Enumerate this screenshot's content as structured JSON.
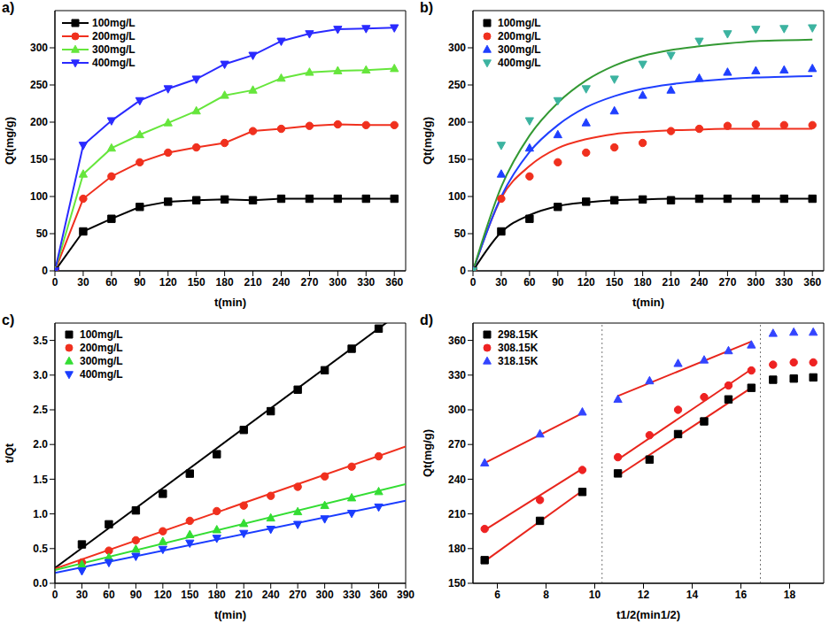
{
  "chart_data": [
    {
      "type": "line",
      "title": "a)",
      "x_label": "t(min)",
      "y_label": "Qt(mg/g)",
      "legend": "upper left",
      "x": [
        0,
        30,
        60,
        90,
        120,
        150,
        180,
        210,
        240,
        270,
        300,
        330,
        360
      ],
      "xlim": [
        0,
        372
      ],
      "xticks": [
        0,
        30,
        60,
        90,
        120,
        150,
        180,
        210,
        240,
        270,
        300,
        330,
        360
      ],
      "ylim": [
        0,
        350
      ],
      "yticks": [
        0,
        50,
        100,
        150,
        200,
        250,
        300
      ],
      "series": [
        {
          "name": "100mg/L",
          "color": "#000000",
          "marker": "square",
          "values": [
            0,
            53,
            70,
            86,
            93,
            95,
            96,
            95,
            97,
            97,
            97,
            97,
            97
          ]
        },
        {
          "name": "200mg/L",
          "color": "#f0301e",
          "marker": "circle",
          "values": [
            0,
            97,
            127,
            146,
            159,
            166,
            172,
            188,
            191,
            195,
            197,
            196,
            196
          ]
        },
        {
          "name": "300mg/L",
          "color": "#66e63c",
          "marker": "triangle-up",
          "values": [
            0,
            130,
            165,
            183,
            199,
            215,
            236,
            243,
            259,
            267,
            269,
            270,
            272
          ]
        },
        {
          "name": "400mg/L",
          "color": "#2a2aff",
          "marker": "triangle-down",
          "values": [
            0,
            169,
            202,
            229,
            245,
            258,
            278,
            290,
            309,
            319,
            325,
            326,
            327
          ]
        }
      ]
    },
    {
      "type": "scatter",
      "title": "b)",
      "x_label": "t(min)",
      "y_label": "Qt(mg/g)",
      "legend": "upper left",
      "x": [
        0,
        30,
        60,
        90,
        120,
        150,
        180,
        210,
        240,
        270,
        300,
        330,
        360
      ],
      "xlim": [
        0,
        372
      ],
      "xticks": [
        0,
        30,
        60,
        90,
        120,
        150,
        180,
        210,
        240,
        270,
        300,
        330,
        360
      ],
      "ylim": [
        0,
        350
      ],
      "yticks": [
        0,
        50,
        100,
        150,
        200,
        250,
        300
      ],
      "series": [
        {
          "name": "100mg/L",
          "color": "#000000",
          "marker": "square",
          "values": [
            0,
            53,
            70,
            86,
            93,
            95,
            96,
            95,
            97,
            97,
            97,
            97,
            97
          ],
          "fit": [
            {
              "color": "#000000",
              "x": [
                0,
                30,
                60,
                90,
                120,
                150,
                180,
                210,
                240,
                270,
                300,
                330,
                360
              ],
              "values": [
                0,
                52,
                75,
                87,
                92,
                95,
                96,
                97,
                97,
                97,
                97,
                97,
                97
              ]
            }
          ]
        },
        {
          "name": "200mg/L",
          "color": "#f0301e",
          "marker": "circle",
          "values": [
            0,
            97,
            127,
            146,
            159,
            166,
            172,
            188,
            191,
            195,
            197,
            196,
            196
          ],
          "fit": [
            {
              "color": "#f0301e",
              "x": [
                0,
                30,
                60,
                90,
                120,
                150,
                180,
                210,
                240,
                270,
                300,
                330,
                360
              ],
              "values": [
                0,
                98,
                141,
                165,
                177,
                184,
                187,
                189,
                190,
                191,
                191,
                191,
                191
              ]
            }
          ]
        },
        {
          "name": "300mg/L",
          "color": "#1f3fff",
          "marker": "triangle-up",
          "values": [
            0,
            130,
            165,
            183,
            199,
            215,
            236,
            243,
            259,
            267,
            269,
            270,
            272
          ],
          "fit": [
            {
              "color": "#1f3fff",
              "x": [
                0,
                30,
                60,
                90,
                120,
                150,
                180,
                210,
                240,
                270,
                300,
                330,
                360
              ],
              "values": [
                0,
                100,
                160,
                196,
                220,
                235,
                245,
                251,
                255,
                258,
                260,
                261,
                262
              ]
            }
          ]
        },
        {
          "name": "400mg/L",
          "color": "#3cb3a0",
          "marker": "triangle-down",
          "values": [
            0,
            169,
            202,
            229,
            245,
            258,
            278,
            290,
            309,
            319,
            325,
            326,
            327
          ],
          "fit": [
            {
              "color": "#339933",
              "x": [
                0,
                30,
                60,
                90,
                120,
                150,
                180,
                210,
                240,
                270,
                300,
                330,
                360
              ],
              "values": [
                0,
                113,
                182,
                226,
                256,
                276,
                289,
                297,
                302,
                306,
                309,
                310,
                311
              ]
            }
          ]
        }
      ]
    },
    {
      "type": "scatter",
      "title": "c)",
      "x_label": "t(min)",
      "y_label": "t/Qt",
      "legend": "upper left",
      "x": [
        30,
        60,
        90,
        120,
        150,
        180,
        210,
        240,
        270,
        300,
        330,
        360
      ],
      "xlim": [
        0,
        390
      ],
      "xticks": [
        0,
        30,
        60,
        90,
        120,
        150,
        180,
        210,
        240,
        270,
        300,
        330,
        360,
        390
      ],
      "ylim": [
        0,
        3.75
      ],
      "yticks": [
        {
          "value": 0,
          "label": "0.0"
        },
        0.5,
        {
          "value": 1,
          "label": "1.0"
        },
        1.5,
        {
          "value": 2,
          "label": "2.0"
        },
        2.5,
        {
          "value": 3,
          "label": "3.0"
        },
        3.5
      ],
      "series": [
        {
          "name": "100mg/L",
          "color": "#000000",
          "marker": "square",
          "values": [
            0.56,
            0.85,
            1.05,
            1.29,
            1.58,
            1.86,
            2.21,
            2.48,
            2.79,
            3.07,
            3.38,
            3.67
          ],
          "fit": [
            {
              "color": "#000000",
              "x": [
                0,
                390
              ],
              "values": [
                0.22,
                3.96
              ]
            }
          ]
        },
        {
          "name": "200mg/L",
          "color": "#f0301e",
          "marker": "circle",
          "values": [
            0.3,
            0.47,
            0.62,
            0.75,
            0.9,
            1.04,
            1.12,
            1.26,
            1.39,
            1.54,
            1.68,
            1.83
          ],
          "fit": [
            {
              "color": "#f0301e",
              "x": [
                0,
                390
              ],
              "values": [
                0.21,
                1.97
              ]
            }
          ]
        },
        {
          "name": "300mg/L",
          "color": "#33dd33",
          "marker": "triangle-up",
          "values": [
            0.27,
            0.37,
            0.49,
            0.6,
            0.7,
            0.77,
            0.86,
            0.94,
            1.03,
            1.12,
            1.23,
            1.32
          ],
          "fit": [
            {
              "color": "#33dd33",
              "x": [
                0,
                390
              ],
              "values": [
                0.19,
                1.43
              ]
            }
          ]
        },
        {
          "name": "400mg/L",
          "color": "#1a3cff",
          "marker": "triangle-down",
          "values": [
            0.18,
            0.3,
            0.39,
            0.49,
            0.58,
            0.65,
            0.72,
            0.78,
            0.85,
            0.93,
            1.01,
            1.1
          ],
          "fit": [
            {
              "color": "#1a3cff",
              "x": [
                0,
                390
              ],
              "values": [
                0.15,
                1.19
              ]
            }
          ]
        }
      ]
    },
    {
      "type": "scatter",
      "title": "d)",
      "x_label": "t1/2(min1/2)",
      "y_label": "Qt(mg/g)",
      "legend": "upper left",
      "x": [
        5.48,
        7.75,
        9.49,
        10.95,
        12.25,
        13.42,
        14.49,
        15.49,
        16.43,
        17.32,
        18.17,
        18.97
      ],
      "xlim": [
        5,
        19.4
      ],
      "xticks": [
        6,
        8,
        10,
        12,
        14,
        16,
        18
      ],
      "ylim": [
        150,
        375
      ],
      "yticks": [
        150,
        180,
        210,
        240,
        270,
        300,
        330,
        360
      ],
      "vlines": [
        10.3,
        16.8
      ],
      "series": [
        {
          "name": "298.15K",
          "color": "#000000",
          "marker": "square",
          "values": [
            170,
            204,
            229,
            245,
            257,
            279,
            290,
            309,
            319,
            326,
            327,
            328
          ],
          "fit": [
            {
              "color": "#e8251c",
              "x": [
                5.48,
                9.49
              ],
              "values": [
                169,
                230
              ]
            },
            {
              "color": "#e8251c",
              "x": [
                10.95,
                16.43
              ],
              "values": [
                243,
                319
              ]
            }
          ]
        },
        {
          "name": "308.15K",
          "color": "#ee2222",
          "marker": "circle",
          "values": [
            197,
            222,
            248,
            259,
            278,
            300,
            311,
            321,
            334,
            339,
            341,
            341
          ],
          "fit": [
            {
              "color": "#e8251c",
              "x": [
                5.48,
                9.49
              ],
              "values": [
                196,
                249
              ]
            },
            {
              "color": "#e8251c",
              "x": [
                10.95,
                16.43
              ],
              "values": [
                257,
                335
              ]
            }
          ]
        },
        {
          "name": "318.15K",
          "color": "#3344ff",
          "marker": "triangle-up",
          "values": [
            254,
            279,
            298,
            309,
            325,
            340,
            343,
            351,
            356,
            366,
            367,
            367
          ],
          "fit": [
            {
              "color": "#e8251c",
              "x": [
                5.48,
                9.49
              ],
              "values": [
                254,
                297
              ]
            },
            {
              "color": "#e8251c",
              "x": [
                10.95,
                16.43
              ],
              "values": [
                312,
                359
              ]
            }
          ]
        }
      ]
    }
  ]
}
